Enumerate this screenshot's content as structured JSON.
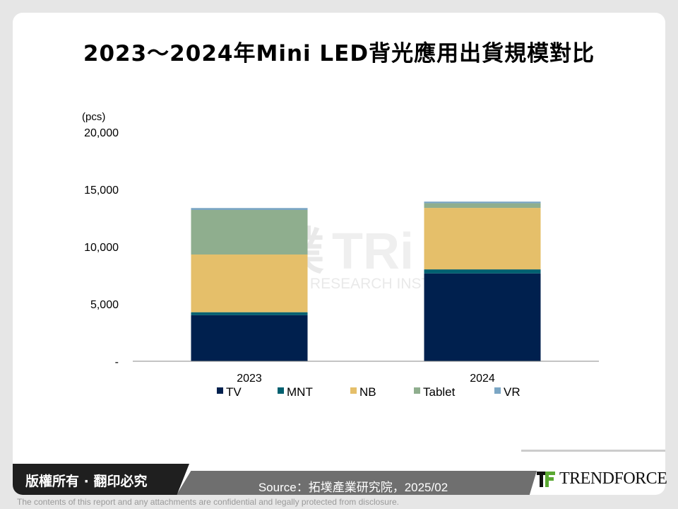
{
  "title": "2023～2024年Mini LED背光應用出貨規模對比",
  "watermark": {
    "cn": "拓墣",
    "en": "TOPOLOGY RESEARCH INSTITUTE",
    "mark": "TRi"
  },
  "chart_data": {
    "type": "bar",
    "stacked": true,
    "title": "2023～2024年Mini LED背光應用出貨規模對比",
    "ylabel": "(pcs)",
    "ylim": [
      0,
      20000
    ],
    "yticks": [
      0,
      5000,
      10000,
      15000,
      20000
    ],
    "ytick_labels": [
      "-",
      "5,000",
      "10,000",
      "15,000",
      "20,000"
    ],
    "categories": [
      "2023",
      "2024"
    ],
    "grid": false,
    "legend_position": "bottom",
    "series": [
      {
        "name": "TV",
        "color": "#00204e",
        "values": [
          4030,
          7670
        ]
      },
      {
        "name": "MNT",
        "color": "#006070",
        "values": [
          250,
          350
        ]
      },
      {
        "name": "NB",
        "color": "#e5bf6a",
        "values": [
          5040,
          5370
        ]
      },
      {
        "name": "Tablet",
        "color": "#8fae8e",
        "values": [
          3890,
          410
        ]
      },
      {
        "name": "VR",
        "color": "#7ba6c4",
        "values": [
          170,
          140
        ]
      }
    ]
  },
  "footer": {
    "copyright": "版權所有 · 翻印必究",
    "source": "Source：拓墣產業研究院，2025/02",
    "logo": "TRENDFORCE",
    "disclaimer": "The contents of this report and any attachments are confidential and legally protected from disclosure."
  }
}
